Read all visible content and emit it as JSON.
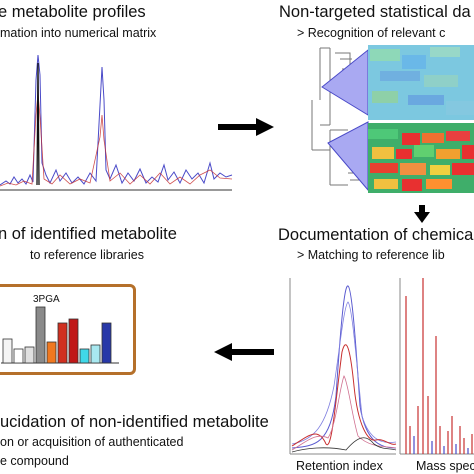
{
  "diagram": {
    "panels": {
      "top_left": {
        "title": "e metabolite profiles",
        "subtitle": "mation into numerical matrix"
      },
      "top_right": {
        "title": "Non-targeted statistical da",
        "subtitle": "> Recognition of relevant c"
      },
      "middle_left": {
        "title": "n of identified metabolite",
        "subtitle": "to reference libraries",
        "bar_chart_label": "3PGA"
      },
      "middle_right": {
        "title": "Documentation of chemica",
        "subtitle": "> Matching to reference lib"
      },
      "bottom_left": {
        "title": "ucidation of non-identified metabolite",
        "line2": "on or acquisition of authenticated",
        "line3": "e compound"
      },
      "bottom_right": {
        "retention_label": "Retention index",
        "mass_label": "Mass spec"
      }
    },
    "colors": {
      "arrow": "#000000",
      "frame": "#b5702a",
      "trace_blue": "#4a4ac8",
      "trace_red": "#c83030"
    }
  }
}
